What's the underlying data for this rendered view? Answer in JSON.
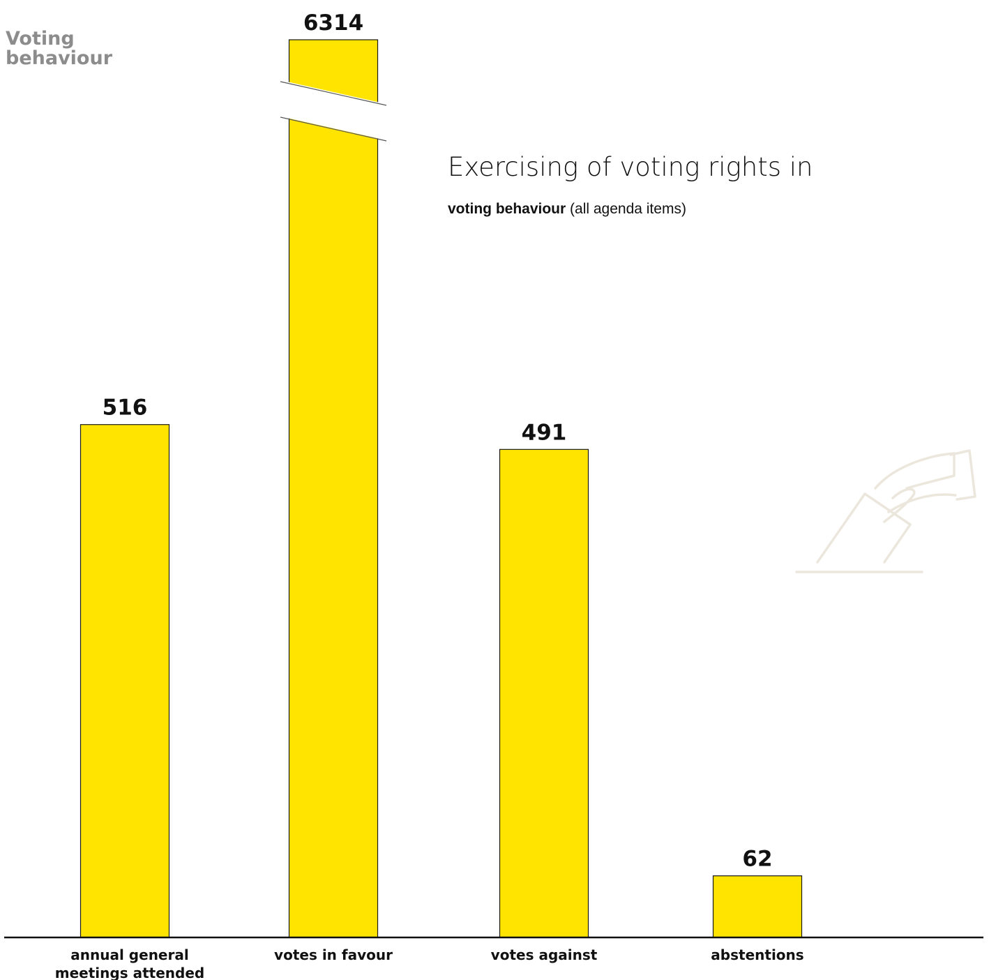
{
  "header": {
    "corner_title": "Voting\nbehaviour",
    "main_title": "Exercising of voting rights in",
    "subtitle_bold": "voting behaviour",
    "subtitle_rest": " (all agenda items)"
  },
  "icon": "ballot-box-vote-icon",
  "colors": {
    "bar": "#ffe400",
    "bar_stroke": "#1a1a1a",
    "axis": "#111111",
    "corner_title": "#8c8c8c",
    "icon": "#ece7dd"
  },
  "chart_data": {
    "type": "bar",
    "categories": [
      "annual general\nmeetings attended",
      "votes in favour",
      "votes against",
      "abstentions"
    ],
    "values": [
      516,
      6314,
      491,
      62
    ],
    "value_labels": [
      "516",
      "6314",
      "491",
      "62"
    ],
    "title": "Exercising of voting rights in",
    "xlabel": "",
    "ylabel": "",
    "ylim": [
      0,
      1000
    ],
    "broken_axis": true,
    "grid": false,
    "legend": "none"
  }
}
